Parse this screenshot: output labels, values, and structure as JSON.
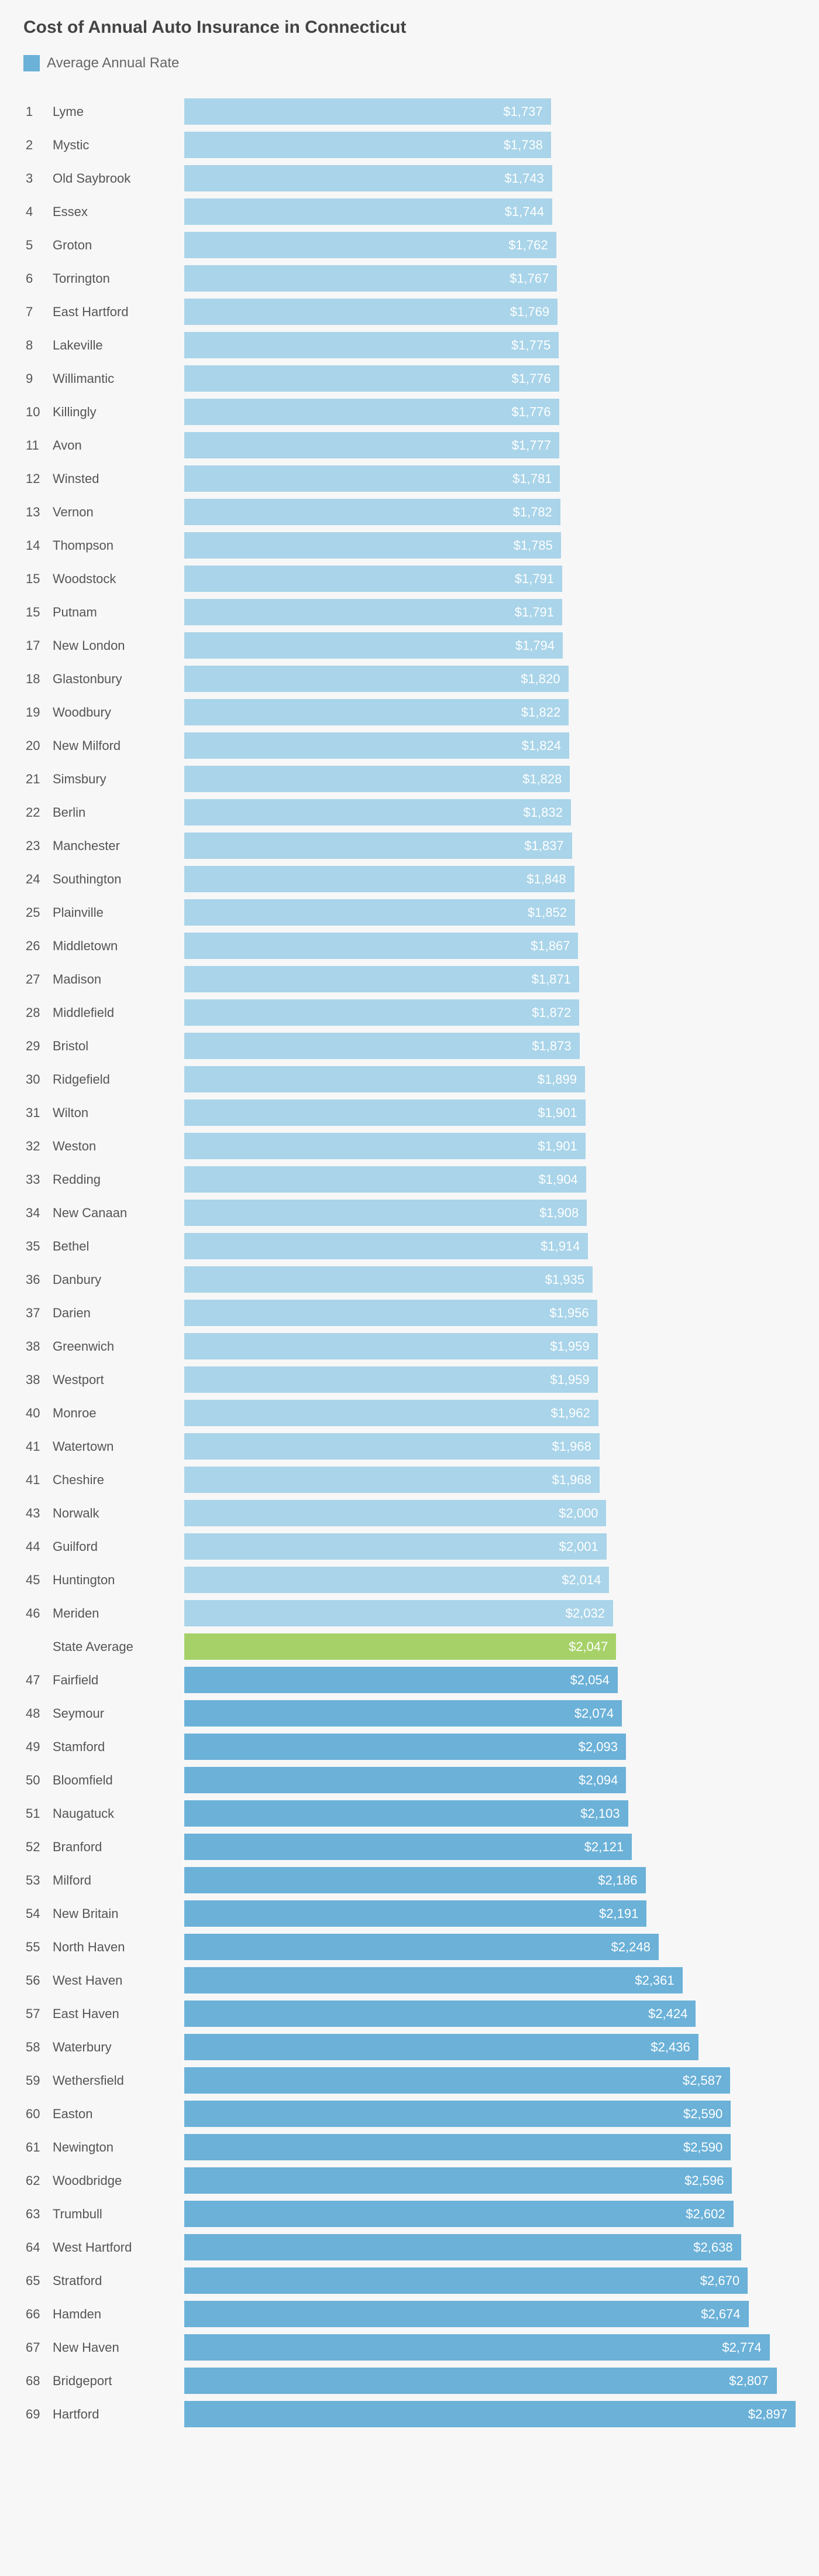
{
  "title": "Cost of Annual Auto Insurance in Connecticut",
  "legend_label": "Average Annual Rate",
  "legend_color": "#6bb1d8",
  "colors": {
    "below": "#a9d4e9",
    "above": "#6bb1d8",
    "state": "#a6d168"
  },
  "max_value": 2897,
  "rows": [
    {
      "rank": "1",
      "city": "Lyme",
      "value": 1737,
      "label": "$1,737",
      "type": "below"
    },
    {
      "rank": "2",
      "city": "Mystic",
      "value": 1738,
      "label": "$1,738",
      "type": "below"
    },
    {
      "rank": "3",
      "city": "Old Saybrook",
      "value": 1743,
      "label": "$1,743",
      "type": "below"
    },
    {
      "rank": "4",
      "city": "Essex",
      "value": 1744,
      "label": "$1,744",
      "type": "below"
    },
    {
      "rank": "5",
      "city": "Groton",
      "value": 1762,
      "label": "$1,762",
      "type": "below"
    },
    {
      "rank": "6",
      "city": "Torrington",
      "value": 1767,
      "label": "$1,767",
      "type": "below"
    },
    {
      "rank": "7",
      "city": "East Hartford",
      "value": 1769,
      "label": "$1,769",
      "type": "below"
    },
    {
      "rank": "8",
      "city": "Lakeville",
      "value": 1775,
      "label": "$1,775",
      "type": "below"
    },
    {
      "rank": "9",
      "city": "Willimantic",
      "value": 1776,
      "label": "$1,776",
      "type": "below"
    },
    {
      "rank": "10",
      "city": "Killingly",
      "value": 1776,
      "label": "$1,776",
      "type": "below"
    },
    {
      "rank": "11",
      "city": "Avon",
      "value": 1777,
      "label": "$1,777",
      "type": "below"
    },
    {
      "rank": "12",
      "city": "Winsted",
      "value": 1781,
      "label": "$1,781",
      "type": "below"
    },
    {
      "rank": "13",
      "city": "Vernon",
      "value": 1782,
      "label": "$1,782",
      "type": "below"
    },
    {
      "rank": "14",
      "city": "Thompson",
      "value": 1785,
      "label": "$1,785",
      "type": "below"
    },
    {
      "rank": "15",
      "city": "Woodstock",
      "value": 1791,
      "label": "$1,791",
      "type": "below"
    },
    {
      "rank": "15",
      "city": "Putnam",
      "value": 1791,
      "label": "$1,791",
      "type": "below"
    },
    {
      "rank": "17",
      "city": "New London",
      "value": 1794,
      "label": "$1,794",
      "type": "below"
    },
    {
      "rank": "18",
      "city": "Glastonbury",
      "value": 1820,
      "label": "$1,820",
      "type": "below"
    },
    {
      "rank": "19",
      "city": "Woodbury",
      "value": 1822,
      "label": "$1,822",
      "type": "below"
    },
    {
      "rank": "20",
      "city": "New Milford",
      "value": 1824,
      "label": "$1,824",
      "type": "below"
    },
    {
      "rank": "21",
      "city": "Simsbury",
      "value": 1828,
      "label": "$1,828",
      "type": "below"
    },
    {
      "rank": "22",
      "city": "Berlin",
      "value": 1832,
      "label": "$1,832",
      "type": "below"
    },
    {
      "rank": "23",
      "city": "Manchester",
      "value": 1837,
      "label": "$1,837",
      "type": "below"
    },
    {
      "rank": "24",
      "city": "Southington",
      "value": 1848,
      "label": "$1,848",
      "type": "below"
    },
    {
      "rank": "25",
      "city": "Plainville",
      "value": 1852,
      "label": "$1,852",
      "type": "below"
    },
    {
      "rank": "26",
      "city": "Middletown",
      "value": 1867,
      "label": "$1,867",
      "type": "below"
    },
    {
      "rank": "27",
      "city": "Madison",
      "value": 1871,
      "label": "$1,871",
      "type": "below"
    },
    {
      "rank": "28",
      "city": "Middlefield",
      "value": 1872,
      "label": "$1,872",
      "type": "below"
    },
    {
      "rank": "29",
      "city": "Bristol",
      "value": 1873,
      "label": "$1,873",
      "type": "below"
    },
    {
      "rank": "30",
      "city": "Ridgefield",
      "value": 1899,
      "label": "$1,899",
      "type": "below"
    },
    {
      "rank": "31",
      "city": "Wilton",
      "value": 1901,
      "label": "$1,901",
      "type": "below"
    },
    {
      "rank": "32",
      "city": "Weston",
      "value": 1901,
      "label": "$1,901",
      "type": "below"
    },
    {
      "rank": "33",
      "city": "Redding",
      "value": 1904,
      "label": "$1,904",
      "type": "below"
    },
    {
      "rank": "34",
      "city": "New Canaan",
      "value": 1908,
      "label": "$1,908",
      "type": "below"
    },
    {
      "rank": "35",
      "city": "Bethel",
      "value": 1914,
      "label": "$1,914",
      "type": "below"
    },
    {
      "rank": "36",
      "city": "Danbury",
      "value": 1935,
      "label": "$1,935",
      "type": "below"
    },
    {
      "rank": "37",
      "city": "Darien",
      "value": 1956,
      "label": "$1,956",
      "type": "below"
    },
    {
      "rank": "38",
      "city": "Greenwich",
      "value": 1959,
      "label": "$1,959",
      "type": "below"
    },
    {
      "rank": "38",
      "city": "Westport",
      "value": 1959,
      "label": "$1,959",
      "type": "below"
    },
    {
      "rank": "40",
      "city": "Monroe",
      "value": 1962,
      "label": "$1,962",
      "type": "below"
    },
    {
      "rank": "41",
      "city": "Watertown",
      "value": 1968,
      "label": "$1,968",
      "type": "below"
    },
    {
      "rank": "41",
      "city": "Cheshire",
      "value": 1968,
      "label": "$1,968",
      "type": "below"
    },
    {
      "rank": "43",
      "city": "Norwalk",
      "value": 2000,
      "label": "$2,000",
      "type": "below"
    },
    {
      "rank": "44",
      "city": "Guilford",
      "value": 2001,
      "label": "$2,001",
      "type": "below"
    },
    {
      "rank": "45",
      "city": "Huntington",
      "value": 2014,
      "label": "$2,014",
      "type": "below"
    },
    {
      "rank": "46",
      "city": "Meriden",
      "value": 2032,
      "label": "$2,032",
      "type": "below"
    },
    {
      "rank": "",
      "city": "State Average",
      "value": 2047,
      "label": "$2,047",
      "type": "state"
    },
    {
      "rank": "47",
      "city": "Fairfield",
      "value": 2054,
      "label": "$2,054",
      "type": "above"
    },
    {
      "rank": "48",
      "city": "Seymour",
      "value": 2074,
      "label": "$2,074",
      "type": "above"
    },
    {
      "rank": "49",
      "city": "Stamford",
      "value": 2093,
      "label": "$2,093",
      "type": "above"
    },
    {
      "rank": "50",
      "city": "Bloomfield",
      "value": 2094,
      "label": "$2,094",
      "type": "above"
    },
    {
      "rank": "51",
      "city": "Naugatuck",
      "value": 2103,
      "label": "$2,103",
      "type": "above"
    },
    {
      "rank": "52",
      "city": "Branford",
      "value": 2121,
      "label": "$2,121",
      "type": "above"
    },
    {
      "rank": "53",
      "city": "Milford",
      "value": 2186,
      "label": "$2,186",
      "type": "above"
    },
    {
      "rank": "54",
      "city": "New Britain",
      "value": 2191,
      "label": "$2,191",
      "type": "above"
    },
    {
      "rank": "55",
      "city": "North Haven",
      "value": 2248,
      "label": "$2,248",
      "type": "above"
    },
    {
      "rank": "56",
      "city": "West Haven",
      "value": 2361,
      "label": "$2,361",
      "type": "above"
    },
    {
      "rank": "57",
      "city": "East Haven",
      "value": 2424,
      "label": "$2,424",
      "type": "above"
    },
    {
      "rank": "58",
      "city": "Waterbury",
      "value": 2436,
      "label": "$2,436",
      "type": "above"
    },
    {
      "rank": "59",
      "city": "Wethersfield",
      "value": 2587,
      "label": "$2,587",
      "type": "above"
    },
    {
      "rank": "60",
      "city": "Easton",
      "value": 2590,
      "label": "$2,590",
      "type": "above"
    },
    {
      "rank": "61",
      "city": "Newington",
      "value": 2590,
      "label": "$2,590",
      "type": "above"
    },
    {
      "rank": "62",
      "city": "Woodbridge",
      "value": 2596,
      "label": "$2,596",
      "type": "above"
    },
    {
      "rank": "63",
      "city": "Trumbull",
      "value": 2602,
      "label": "$2,602",
      "type": "above"
    },
    {
      "rank": "64",
      "city": "West Hartford",
      "value": 2638,
      "label": "$2,638",
      "type": "above"
    },
    {
      "rank": "65",
      "city": "Stratford",
      "value": 2670,
      "label": "$2,670",
      "type": "above"
    },
    {
      "rank": "66",
      "city": "Hamden",
      "value": 2674,
      "label": "$2,674",
      "type": "above"
    },
    {
      "rank": "67",
      "city": "New Haven",
      "value": 2774,
      "label": "$2,774",
      "type": "above"
    },
    {
      "rank": "68",
      "city": "Bridgeport",
      "value": 2807,
      "label": "$2,807",
      "type": "above"
    },
    {
      "rank": "69",
      "city": "Hartford",
      "value": 2897,
      "label": "$2,897",
      "type": "above"
    }
  ]
}
